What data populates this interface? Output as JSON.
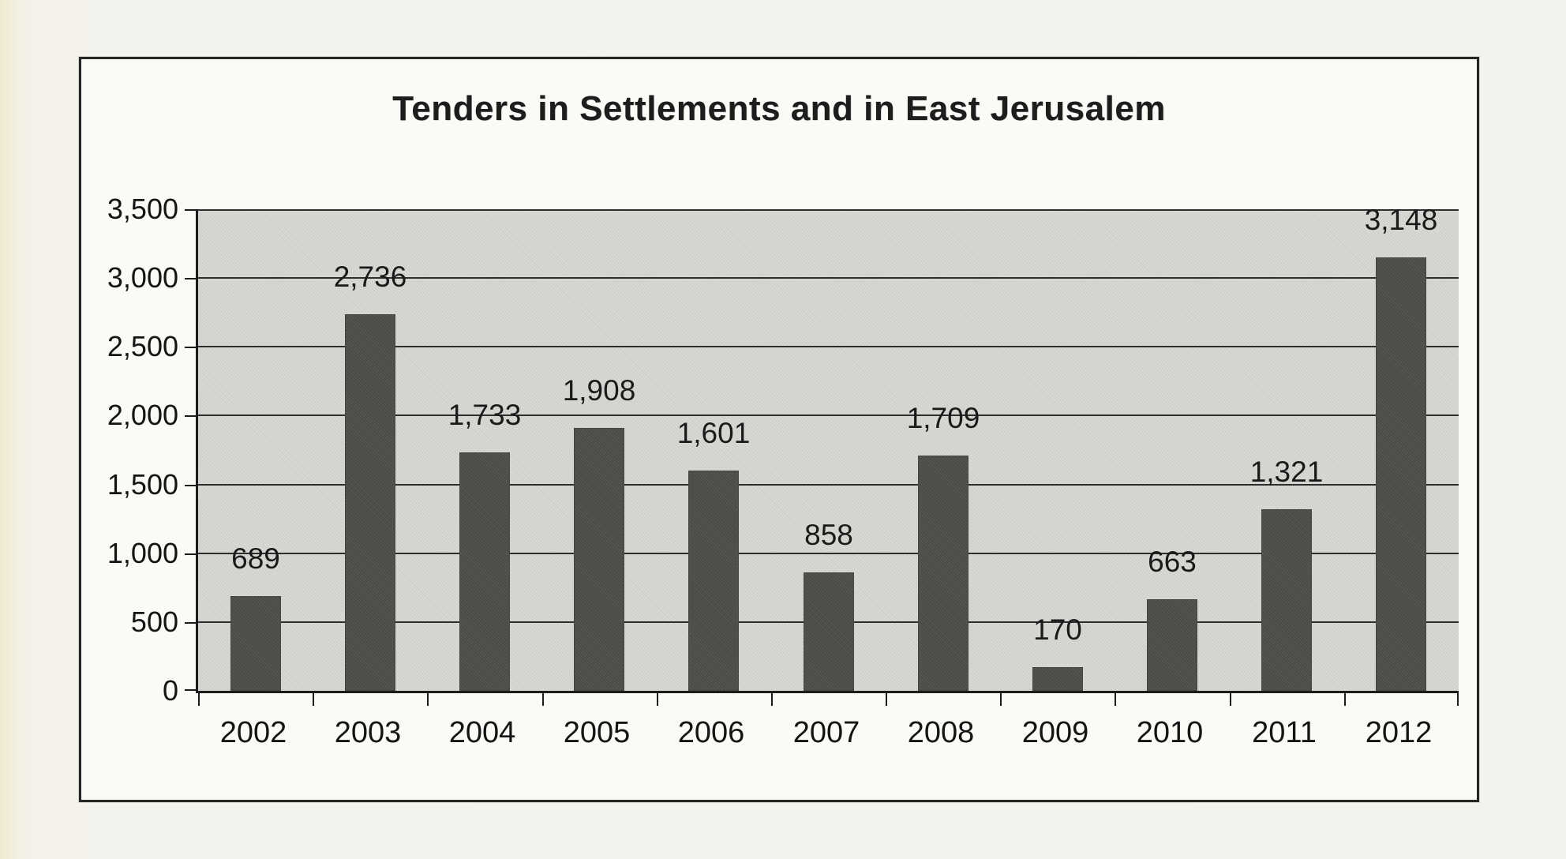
{
  "page": {
    "background_color": "#f2f0e9",
    "frame_background": "#fbfaf6",
    "frame_border_color": "#262626"
  },
  "chart_data": {
    "type": "bar",
    "title": "Tenders in Settlements and in East Jerusalem",
    "categories": [
      "2002",
      "2003",
      "2004",
      "2005",
      "2006",
      "2007",
      "2008",
      "2009",
      "2010",
      "2011",
      "2012"
    ],
    "values": [
      689,
      2736,
      1733,
      1908,
      1601,
      858,
      1709,
      170,
      663,
      1321,
      3148
    ],
    "value_labels": [
      "689",
      "2,736",
      "1,733",
      "1,908",
      "1,601",
      "858",
      "1,709",
      "170",
      "663",
      "1,321",
      "3,148"
    ],
    "xlabel": "",
    "ylabel": "",
    "ylim": [
      0,
      3500
    ],
    "ytick_step": 500,
    "ytick_labels": [
      "0",
      "500",
      "1,000",
      "1,500",
      "2,000",
      "2,500",
      "3,000",
      "3,500"
    ],
    "grid": true,
    "legend": "none",
    "bar_color": "#4a4a47",
    "plot_background": "#d8d7d3",
    "gridline_color": "#2e2e2e",
    "text_color": "#141414"
  }
}
